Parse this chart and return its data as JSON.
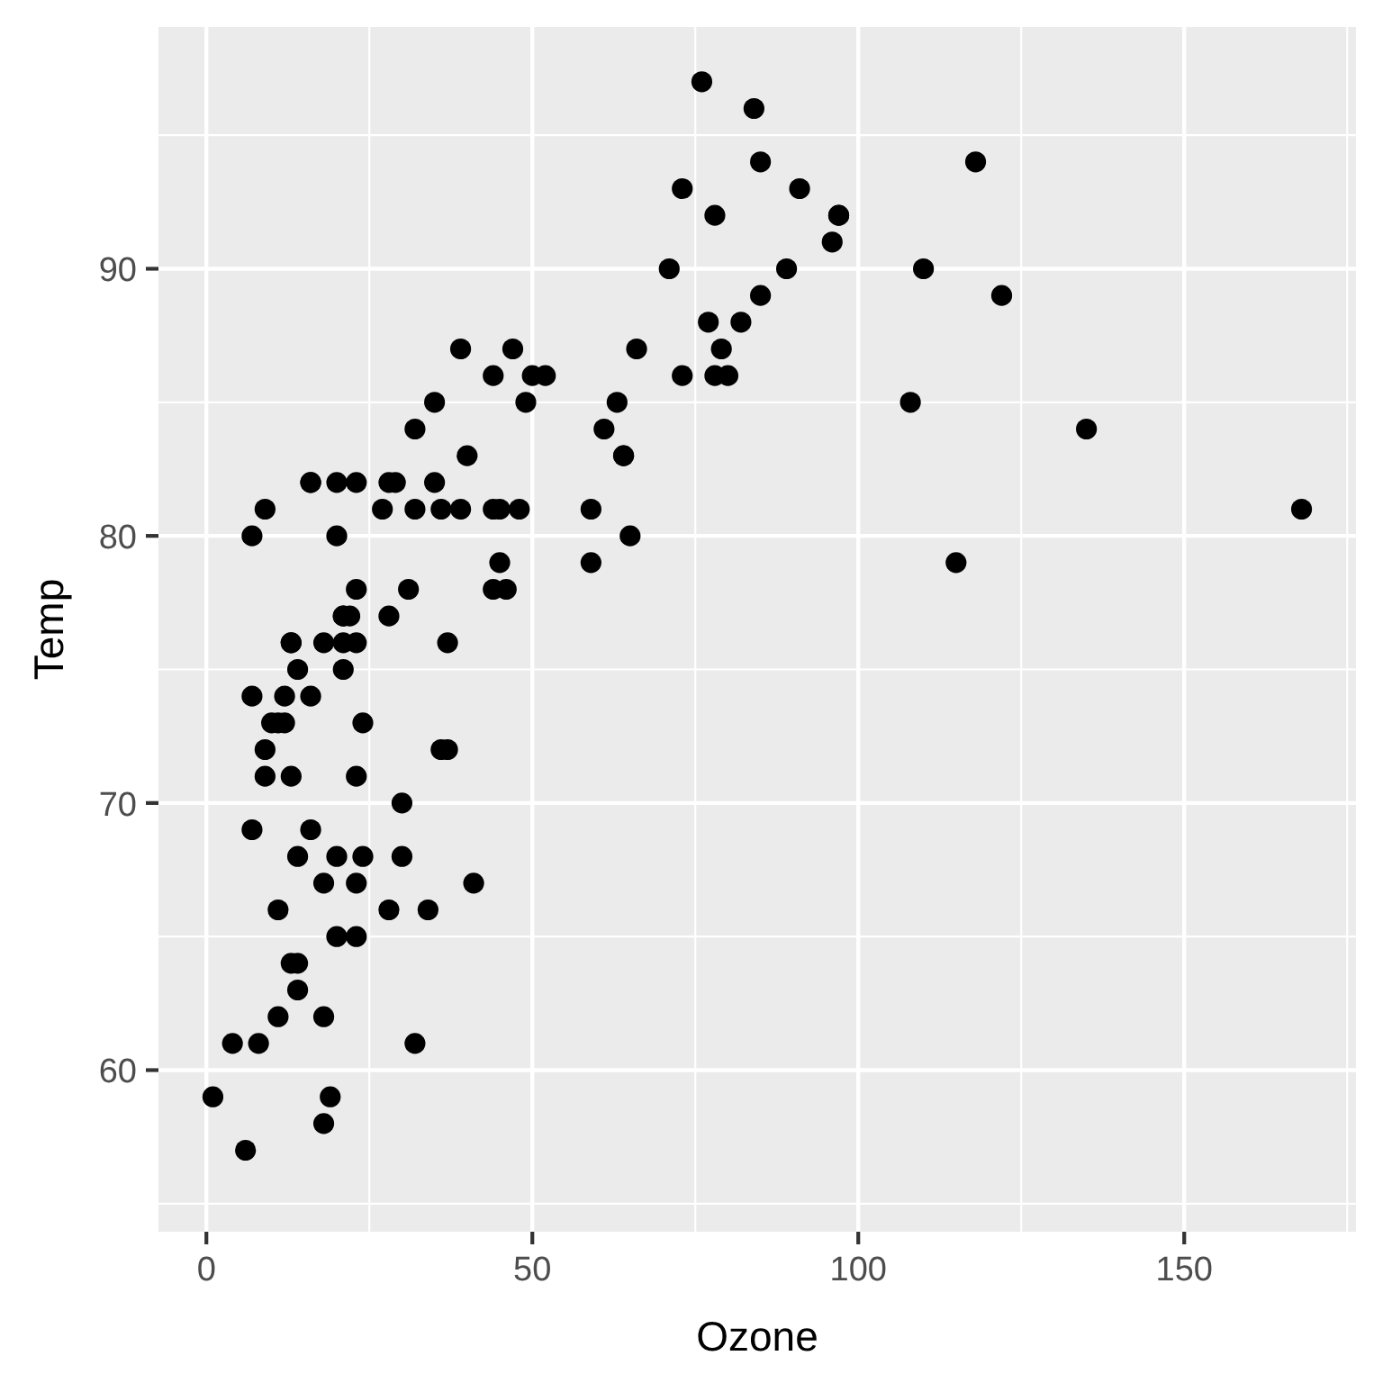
{
  "chart_data": {
    "type": "scatter",
    "xlabel": "Ozone",
    "ylabel": "Temp",
    "x": [
      41,
      36,
      12,
      18,
      28,
      23,
      19,
      8,
      7,
      16,
      11,
      14,
      18,
      14,
      34,
      6,
      30,
      11,
      1,
      11,
      4,
      32,
      23,
      45,
      115,
      37,
      29,
      71,
      39,
      23,
      21,
      37,
      20,
      12,
      13,
      135,
      49,
      32,
      64,
      40,
      77,
      97,
      97,
      85,
      10,
      27,
      7,
      48,
      35,
      61,
      79,
      63,
      16,
      80,
      108,
      20,
      52,
      82,
      50,
      64,
      59,
      39,
      9,
      16,
      78,
      35,
      66,
      122,
      89,
      110,
      44,
      28,
      65,
      22,
      59,
      23,
      31,
      44,
      21,
      9,
      45,
      168,
      73,
      76,
      118,
      84,
      85,
      96,
      78,
      73,
      91,
      47,
      32,
      20,
      23,
      21,
      24,
      44,
      21,
      28,
      9,
      13,
      46,
      18,
      13,
      24,
      16,
      13,
      23,
      36,
      7,
      14,
      30,
      14,
      18,
      20
    ],
    "values": [
      67,
      72,
      74,
      62,
      66,
      65,
      59,
      61,
      74,
      69,
      66,
      68,
      58,
      64,
      66,
      57,
      68,
      62,
      59,
      73,
      61,
      61,
      67,
      81,
      79,
      76,
      82,
      90,
      87,
      82,
      77,
      72,
      65,
      73,
      76,
      84,
      85,
      81,
      83,
      83,
      88,
      92,
      92,
      89,
      73,
      81,
      80,
      81,
      82,
      84,
      87,
      85,
      74,
      86,
      85,
      82,
      86,
      88,
      86,
      83,
      81,
      81,
      81,
      82,
      86,
      85,
      87,
      89,
      90,
      90,
      86,
      82,
      80,
      77,
      79,
      76,
      78,
      78,
      77,
      72,
      79,
      81,
      86,
      97,
      94,
      96,
      94,
      91,
      92,
      93,
      93,
      87,
      84,
      80,
      78,
      75,
      73,
      81,
      76,
      77,
      71,
      71,
      78,
      67,
      76,
      68,
      82,
      64,
      71,
      81,
      69,
      63,
      70,
      75,
      76,
      68
    ],
    "color": "#000000",
    "marker": "circle",
    "grid": true,
    "xlim": [
      -7.35,
      176.35
    ],
    "xticks": [
      0,
      50,
      100,
      150
    ],
    "ylim": [
      53.95,
      99.05
    ],
    "yticks": [
      60,
      70,
      80,
      90
    ]
  }
}
